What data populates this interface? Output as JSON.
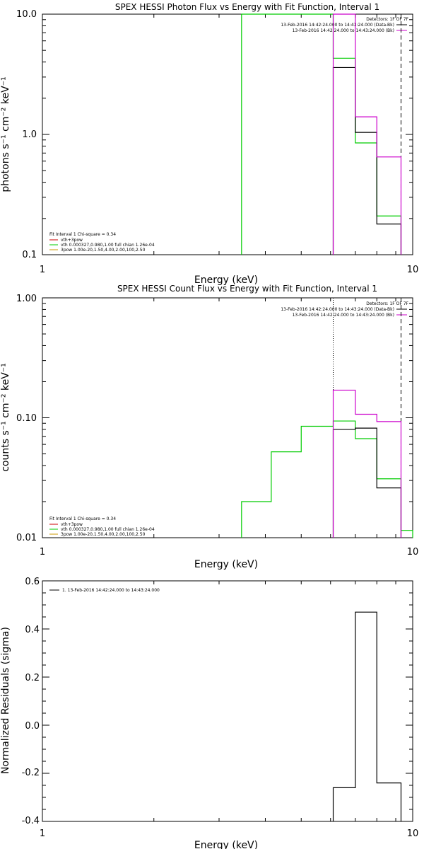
{
  "chart_data": [
    {
      "type": "line",
      "title": "SPEX HESSI Photon Flux vs Energy with Fit Function, Interval 1",
      "xlabel": "Energy (keV)",
      "ylabel": "photons s⁻¹ cm⁻² keV⁻¹",
      "xscale": "log",
      "yscale": "log",
      "xlim": [
        1,
        10
      ],
      "ylim": [
        0.1,
        10
      ],
      "xticklabels": [
        "1",
        "10"
      ],
      "yticklabels": [
        "0.1",
        "1.0",
        "10.0"
      ],
      "legend_top": {
        "title": "Detectors: 1F OF 7F",
        "entries": [
          {
            "text": "13-Feb-2016 14:42:24.000 to 14:43:24.000 (Data-Bk)",
            "color": "#000000"
          },
          {
            "text": "13-Feb-2016 14:42:24.000 to 14:43:24.000 (Bk)",
            "color": "#cc00cc"
          }
        ]
      },
      "legend_bottom": {
        "header": "Fit Interval  1    Chi-square = 0.34",
        "entries": [
          {
            "text": "vth+3pow",
            "color": "#cc0000"
          },
          {
            "text": "vth 0.000327,0.980,1.00  full chian 1.26e-04",
            "color": "#00cc00"
          },
          {
            "text": "3pow 1.00e-20,1.50,4.00,2.00,100,2.50",
            "color": "#cc9900"
          }
        ]
      },
      "vlines": [
        {
          "x": 6.1,
          "style": "dotted",
          "color": "#000000"
        },
        {
          "x": 9.3,
          "style": "dashed",
          "color": "#000000"
        }
      ],
      "series": [
        {
          "color": "#00cc00",
          "edges": [
            3.45,
            4.15,
            5,
            6.1,
            7.0,
            8.0,
            9.3
          ],
          "values": [
            10.0,
            10.0,
            10.0,
            4.3,
            0.85,
            0.21
          ]
        },
        {
          "color": "#000000",
          "edges": [
            6.1,
            7.0,
            8.0,
            9.3
          ],
          "values": [
            3.6,
            1.04,
            0.18
          ]
        },
        {
          "color": "#cc00cc",
          "edges": [
            6.1,
            7.0,
            8.0,
            9.3
          ],
          "values": [
            10.0,
            1.4,
            0.65
          ]
        }
      ]
    },
    {
      "type": "line",
      "title": "SPEX HESSI Count Flux vs Energy with Fit Function, Interval 1",
      "xlabel": "Energy (keV)",
      "ylabel": "counts s⁻¹ cm⁻² keV⁻¹",
      "xscale": "log",
      "yscale": "log",
      "xlim": [
        1,
        10
      ],
      "ylim": [
        0.01,
        1
      ],
      "xticklabels": [
        "1",
        "10"
      ],
      "yticklabels": [
        "0.01",
        "0.10",
        "1.00"
      ],
      "legend_top": {
        "title": "Detectors: 1F OF 7F",
        "entries": [
          {
            "text": "13-Feb-2016 14:42:24.000 to 14:43:24.000 (Data-Bk)",
            "color": "#000000"
          },
          {
            "text": "13-Feb-2016 14:42:24.000 to 14:43:24.000 (Bk)",
            "color": "#cc00cc"
          }
        ]
      },
      "legend_bottom": {
        "header": "Fit Interval  1    Chi-square = 0.34",
        "entries": [
          {
            "text": "vth+3pow",
            "color": "#cc0000"
          },
          {
            "text": "vth 0.000327,0.980,1.00  full chian 1.26e-04",
            "color": "#00cc00"
          },
          {
            "text": "3pow 1.00e-20,1.50,4.00,2.00,100,2.50",
            "color": "#cc9900"
          }
        ]
      },
      "vlines": [
        {
          "x": 6.1,
          "style": "dotted",
          "color": "#000000"
        },
        {
          "x": 9.3,
          "style": "dashed",
          "color": "#000000"
        }
      ],
      "series": [
        {
          "color": "#00cc00",
          "edges": [
            3.45,
            4.15,
            5,
            6.1,
            7.0,
            8.0,
            9.3,
            10
          ],
          "values": [
            0.02,
            0.052,
            0.085,
            0.094,
            0.067,
            0.031,
            0.0115
          ]
        },
        {
          "color": "#000000",
          "edges": [
            6.1,
            7.0,
            8.0,
            9.3
          ],
          "values": [
            0.08,
            0.082,
            0.026
          ]
        },
        {
          "color": "#cc00cc",
          "edges": [
            6.1,
            7.0,
            8.0,
            9.3
          ],
          "values": [
            0.17,
            0.107,
            0.093
          ]
        }
      ]
    },
    {
      "type": "line",
      "title": "",
      "xlabel": "Energy (keV)",
      "ylabel": "Normalized Residuals (sigma)",
      "xscale": "log",
      "yscale": "linear",
      "xlim": [
        1,
        10
      ],
      "ylim": [
        -0.4,
        0.6
      ],
      "xticklabels": [
        "1",
        "10"
      ],
      "yticklabels": [
        "-0.4",
        "-0.2",
        "0.0",
        "0.2",
        "0.4",
        "0.6"
      ],
      "legend_top": {
        "entries": [
          {
            "text": "1. 13-Feb-2016 14:42:24.000 to 14:43:24.000",
            "color": "#000000"
          }
        ]
      },
      "series": [
        {
          "color": "#000000",
          "edges": [
            6.1,
            7.0,
            8.0,
            9.3
          ],
          "values": [
            -0.26,
            0.47,
            -0.24
          ]
        }
      ]
    }
  ]
}
